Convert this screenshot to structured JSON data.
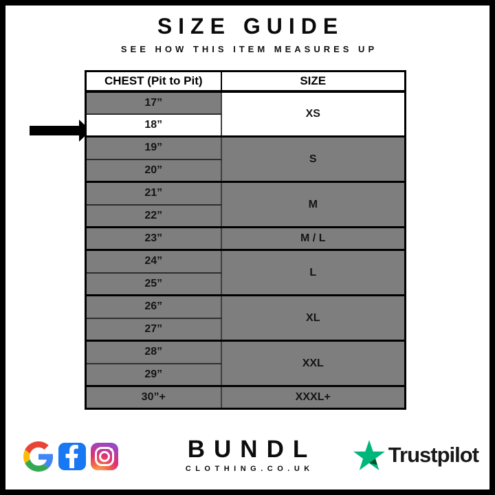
{
  "header": {
    "title": "SIZE GUIDE",
    "subtitle": "SEE HOW THIS ITEM MEASURES UP"
  },
  "table": {
    "columns": [
      "CHEST (Pit to Pit)",
      "SIZE"
    ],
    "groups": [
      {
        "size": "XS",
        "chests": [
          "17”",
          "18”"
        ],
        "size_white": true
      },
      {
        "size": "S",
        "chests": [
          "19”",
          "20”"
        ],
        "size_white": false
      },
      {
        "size": "M",
        "chests": [
          "21”",
          "22”"
        ],
        "size_white": false
      },
      {
        "size": "M / L",
        "chests": [
          "23”"
        ],
        "size_white": false
      },
      {
        "size": "L",
        "chests": [
          "24”",
          "25”"
        ],
        "size_white": false
      },
      {
        "size": "XL",
        "chests": [
          "26”",
          "27”"
        ],
        "size_white": false
      },
      {
        "size": "XXL",
        "chests": [
          "28”",
          "29”"
        ],
        "size_white": false
      },
      {
        "size": "XXXL+",
        "chests": [
          "30”+"
        ],
        "size_white": false
      }
    ],
    "highlighted_chest": "18”"
  },
  "chart_data": {
    "type": "table",
    "title": "SIZE GUIDE",
    "subtitle": "SEE HOW THIS ITEM MEASURES UP",
    "columns": [
      "CHEST (Pit to Pit)",
      "SIZE"
    ],
    "rows": [
      [
        "17”",
        "XS"
      ],
      [
        "18”",
        "XS"
      ],
      [
        "19”",
        "S"
      ],
      [
        "20”",
        "S"
      ],
      [
        "21”",
        "M"
      ],
      [
        "22”",
        "M"
      ],
      [
        "23”",
        "M / L"
      ],
      [
        "24”",
        "L"
      ],
      [
        "25”",
        "L"
      ],
      [
        "26”",
        "XL"
      ],
      [
        "27”",
        "XL"
      ],
      [
        "28”",
        "XXL"
      ],
      [
        "29”",
        "XXL"
      ],
      [
        "30”+",
        "XXXL+"
      ]
    ],
    "highlighted_row": "18”",
    "layout_hints": {
      "grid": "on",
      "row_fill": "#7e7e7e",
      "highlight_fill": "#ffffff"
    }
  },
  "footer": {
    "social_icons": [
      "google",
      "facebook",
      "instagram"
    ],
    "brand": {
      "name": "BUNDL",
      "domain": "CLOTHING.CO.UK"
    },
    "trustpilot_label": "Trustpilot"
  },
  "colors": {
    "row_gray": "#7e7e7e",
    "facebook_blue": "#1877f2",
    "trustpilot_green": "#00b67a",
    "trustpilot_dark_green": "#005128",
    "border_black": "#000000"
  }
}
